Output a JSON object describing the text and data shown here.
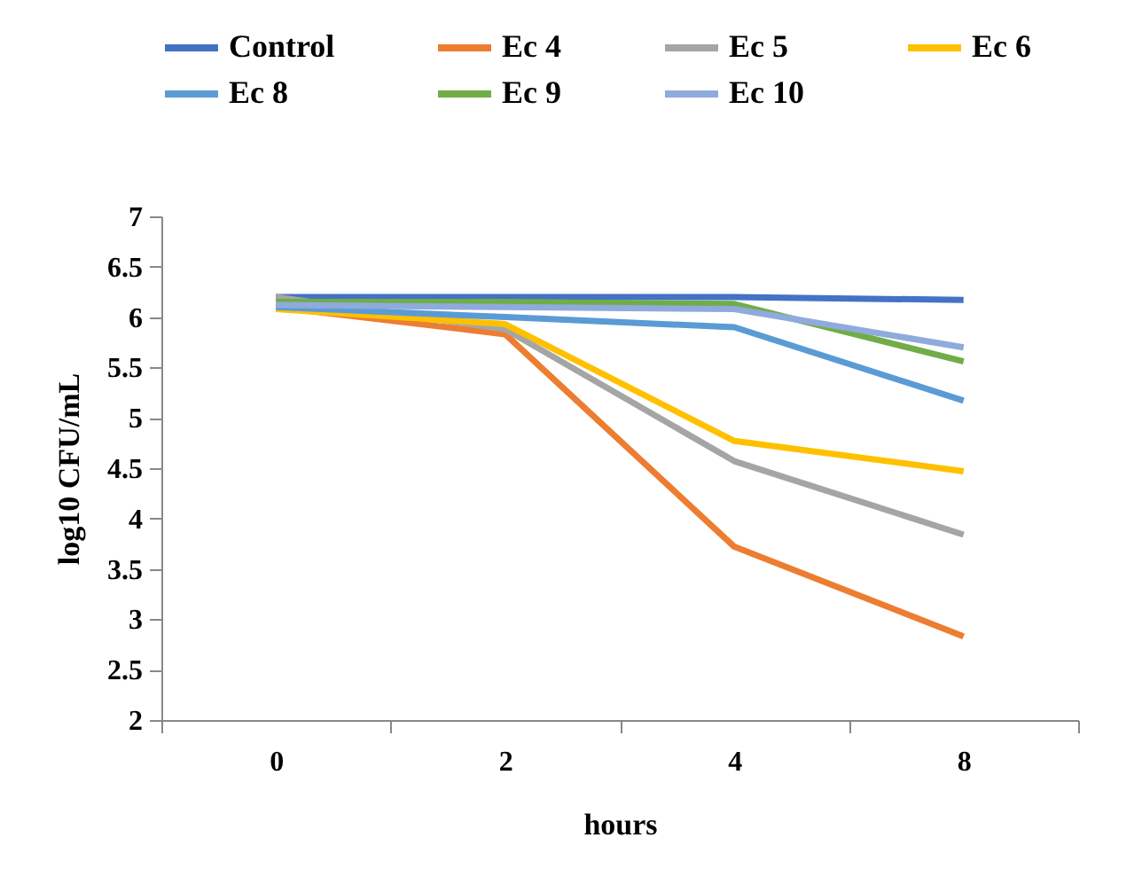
{
  "chart_data": {
    "type": "line",
    "xlabel": "hours",
    "ylabel": "log10 CFU/mL",
    "categories": [
      "0",
      "2",
      "4",
      "8"
    ],
    "series": [
      {
        "name": "Control",
        "color": "#4472c4",
        "values": [
          6.2,
          6.2,
          6.2,
          6.17
        ]
      },
      {
        "name": "Ec 4",
        "color": "#ed7d31",
        "values": [
          6.1,
          5.83,
          3.72,
          2.83
        ]
      },
      {
        "name": "Ec 5",
        "color": "#a5a5a5",
        "values": [
          6.2,
          5.88,
          4.57,
          3.84
        ]
      },
      {
        "name": "Ec 6",
        "color": "#ffc000",
        "values": [
          6.08,
          5.93,
          4.77,
          4.47
        ]
      },
      {
        "name": "Ec 8",
        "color": "#5b9bd5",
        "values": [
          6.1,
          6.0,
          5.9,
          5.17
        ]
      },
      {
        "name": "Ec 9",
        "color": "#70ad47",
        "values": [
          6.15,
          6.15,
          6.13,
          5.56
        ]
      },
      {
        "name": "Ec 10",
        "color": "#8faadc",
        "values": [
          6.12,
          6.1,
          6.08,
          5.7
        ]
      }
    ],
    "ylim": [
      2,
      7
    ],
    "yticks": [
      2,
      2.5,
      3,
      3.5,
      4,
      4.5,
      5,
      5.5,
      6,
      6.5,
      7
    ],
    "grid": false,
    "legend": "top",
    "marker": "none",
    "line_style": "solid"
  }
}
